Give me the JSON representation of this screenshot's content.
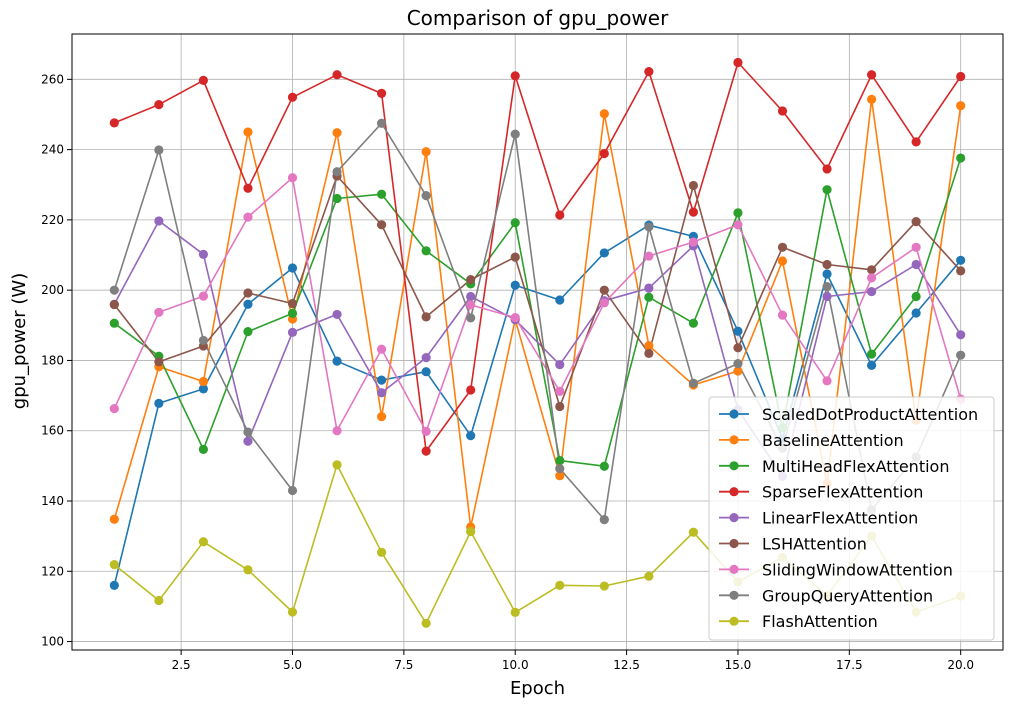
{
  "chart_data": {
    "type": "line",
    "title": "Comparison of gpu_power",
    "xlabel": "Epoch",
    "ylabel": "gpu_power (W)",
    "xlim": [
      0.05,
      20.95
    ],
    "ylim": [
      97.6,
      272.9
    ],
    "xticks": [
      2.5,
      5.0,
      7.5,
      10.0,
      12.5,
      15.0,
      17.5,
      20.0
    ],
    "xtick_labels": [
      "2.5",
      "5.0",
      "7.5",
      "10.0",
      "12.5",
      "15.0",
      "17.5",
      "20.0"
    ],
    "yticks": [
      100,
      120,
      140,
      160,
      180,
      200,
      220,
      240,
      260
    ],
    "ytick_labels": [
      "100",
      "120",
      "140",
      "160",
      "180",
      "200",
      "220",
      "240",
      "260"
    ],
    "grid": true,
    "legend_position": "lower-right",
    "x": [
      1,
      2,
      3,
      4,
      5,
      6,
      7,
      8,
      9,
      10,
      11,
      12,
      13,
      14,
      15,
      16,
      17,
      18,
      19,
      20
    ],
    "series": [
      {
        "name": "ScaledDotProductAttention",
        "color": "#1f77b4",
        "values": [
          116.0,
          167.8,
          171.9,
          196.0,
          206.3,
          179.8,
          174.4,
          176.8,
          158.6,
          201.4,
          197.2,
          210.6,
          218.5,
          215.3,
          188.3,
          157.7,
          204.6,
          178.6,
          193.5,
          208.5
        ]
      },
      {
        "name": "BaselineAttention",
        "color": "#ff7f0e",
        "values": [
          134.8,
          178.2,
          174.0,
          245.0,
          191.8,
          244.8,
          164.0,
          239.4,
          132.6,
          191.6,
          147.2,
          250.2,
          184.2,
          173.0,
          177.0,
          208.3,
          145.0,
          254.3,
          163.0,
          252.5
        ]
      },
      {
        "name": "MultiHeadFlexAttention",
        "color": "#2ca02c",
        "values": [
          190.6,
          181.2,
          154.7,
          188.2,
          193.4,
          226.1,
          227.3,
          211.2,
          201.8,
          219.2,
          151.5,
          149.9,
          198.0,
          190.6,
          222.0,
          160.8,
          228.6,
          181.8,
          198.2,
          237.6
        ]
      },
      {
        "name": "SparseFlexAttention",
        "color": "#d62728",
        "values": [
          247.6,
          252.8,
          259.7,
          229.0,
          254.9,
          261.3,
          256.0,
          154.2,
          171.6,
          261.0,
          221.4,
          238.9,
          262.2,
          222.2,
          264.8,
          251.0,
          234.5,
          261.3,
          242.2,
          260.8
        ]
      },
      {
        "name": "LinearFlexAttention",
        "color": "#9467bd",
        "values": [
          196.0,
          219.7,
          210.2,
          157.0,
          188.0,
          193.1,
          170.8,
          180.8,
          198.2,
          191.6,
          178.8,
          197.0,
          200.6,
          212.6,
          166.0,
          147.0,
          198.2,
          199.6,
          207.3,
          187.3
        ]
      },
      {
        "name": "LSHAttention",
        "color": "#8c564b",
        "values": [
          195.9,
          179.6,
          184.1,
          199.2,
          196.2,
          232.5,
          218.6,
          192.4,
          203.0,
          209.4,
          166.9,
          200.0,
          182.0,
          229.8,
          183.6,
          212.2,
          207.3,
          205.8,
          219.5,
          205.5
        ]
      },
      {
        "name": "SlidingWindowAttention",
        "color": "#e377c2",
        "values": [
          166.3,
          193.7,
          198.3,
          220.8,
          232.0,
          160.0,
          183.2,
          159.8,
          195.8,
          192.2,
          171.2,
          196.4,
          209.7,
          213.7,
          218.6,
          192.9,
          174.2,
          203.5,
          212.2,
          169.0
        ]
      },
      {
        "name": "GroupQueryAttention",
        "color": "#7f7f7f",
        "values": [
          200.0,
          239.9,
          185.7,
          159.6,
          143.0,
          233.7,
          247.5,
          226.9,
          192.1,
          244.4,
          149.2,
          134.7,
          218.0,
          173.5,
          179.1,
          155.0,
          201.0,
          137.5,
          152.5,
          181.5
        ]
      },
      {
        "name": "FlashAttention",
        "color": "#bcbd22",
        "values": [
          121.9,
          111.7,
          128.4,
          120.4,
          108.4,
          150.3,
          125.4,
          105.2,
          131.3,
          108.3,
          116.0,
          115.8,
          118.6,
          131.1,
          117.0,
          124.0,
          113.0,
          130.0,
          108.4,
          112.9
        ]
      }
    ]
  }
}
